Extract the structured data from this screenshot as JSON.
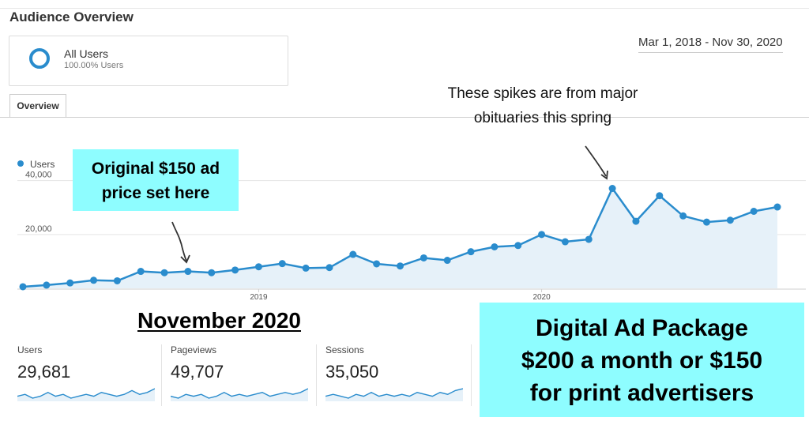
{
  "header": {
    "title": "Audience Overview",
    "date_range": "Mar 1, 2018 - Nov 30, 2020"
  },
  "segment": {
    "name": "All Users",
    "percent": "100.00% Users"
  },
  "tabs": [
    {
      "label": "Overview",
      "active": true
    }
  ],
  "colors": {
    "accent": "#2a8ccd",
    "area_fill": "#e6f1f9",
    "callout": "#8efdff"
  },
  "chart_data": {
    "type": "area",
    "legend": [
      "Users"
    ],
    "legend_position": "top-left",
    "x_ticks": [
      "2019",
      "2020"
    ],
    "y_ticks": [
      {
        "value": 40000,
        "label": "40,000"
      },
      {
        "value": 20000,
        "label": "20,000"
      }
    ],
    "ylim": [
      0,
      44000
    ],
    "grid": true,
    "x": [
      "2018-03",
      "2018-04",
      "2018-05",
      "2018-06",
      "2018-07",
      "2018-08",
      "2018-09",
      "2018-10",
      "2018-11",
      "2018-12",
      "2019-01",
      "2019-02",
      "2019-03",
      "2019-04",
      "2019-05",
      "2019-06",
      "2019-07",
      "2019-08",
      "2019-09",
      "2019-10",
      "2019-11",
      "2019-12",
      "2020-01",
      "2020-02",
      "2020-03",
      "2020-04",
      "2020-05",
      "2020-06",
      "2020-07",
      "2020-08",
      "2020-09",
      "2020-10",
      "2020-11"
    ],
    "series": [
      {
        "name": "Users",
        "values": [
          600,
          1200,
          2000,
          3000,
          2800,
          6300,
          5800,
          6300,
          5800,
          6800,
          8000,
          9200,
          7500,
          7700,
          12600,
          9100,
          8300,
          11300,
          10400,
          13600,
          15400,
          15900,
          20000,
          17300,
          18200,
          37100,
          24900,
          34400,
          26900,
          24600,
          25300,
          28600,
          30200
        ]
      }
    ]
  },
  "annotations": {
    "ad_price": "Original $150 ad price set here",
    "spike_note": "These spikes are from major obituaries this spring",
    "month_heading": "November 2020",
    "package": {
      "line1": "Digital Ad Package",
      "line2": "$200 a month or $150",
      "line3": "for print advertisers"
    }
  },
  "metrics": [
    {
      "label": "Users",
      "value": "29,681",
      "sparkline": [
        5,
        6,
        4,
        5,
        7,
        5,
        6,
        4,
        5,
        6,
        5,
        7,
        6,
        5,
        6,
        8,
        6,
        7,
        9
      ]
    },
    {
      "label": "Pageviews",
      "value": "49,707",
      "sparkline": [
        5,
        4,
        6,
        5,
        6,
        4,
        5,
        7,
        5,
        6,
        5,
        6,
        7,
        5,
        6,
        7,
        6,
        7,
        9
      ]
    },
    {
      "label": "Sessions",
      "value": "35,050",
      "sparkline": [
        5,
        6,
        5,
        4,
        6,
        5,
        7,
        5,
        6,
        5,
        6,
        5,
        7,
        6,
        5,
        7,
        6,
        8,
        9
      ]
    }
  ]
}
